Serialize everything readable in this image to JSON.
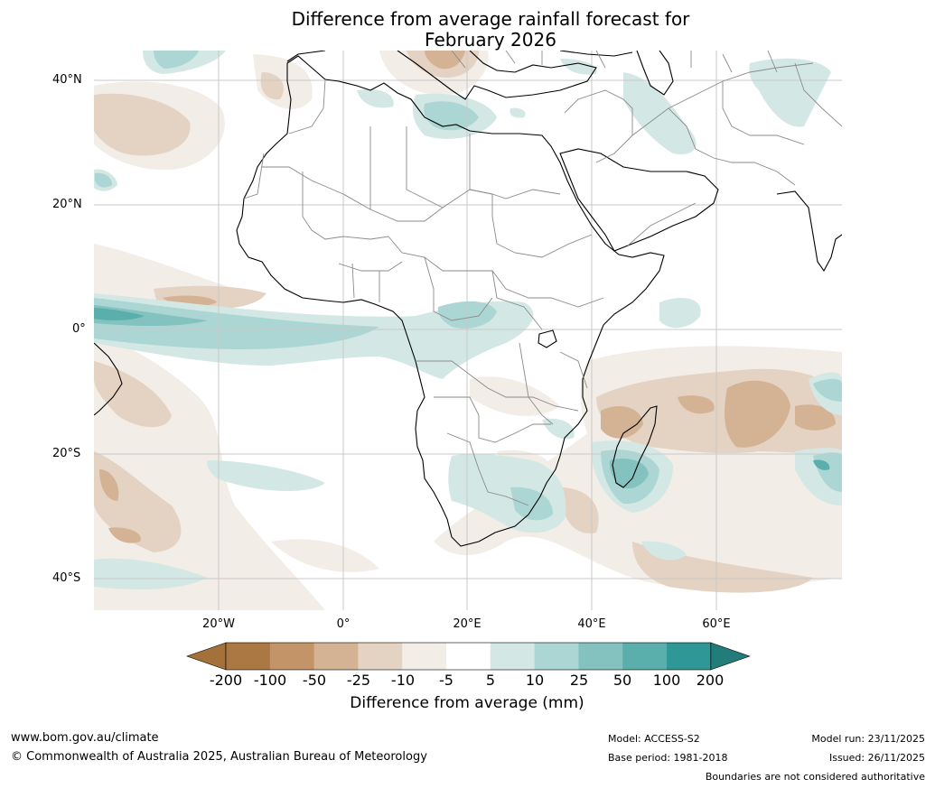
{
  "title_line1": "Difference from average rainfall forecast for",
  "title_line2": "February 2026",
  "lat_labels": [
    "40°N",
    "20°N",
    "0°",
    "20°S",
    "40°S"
  ],
  "lon_labels": [
    "20°W",
    "0°",
    "20°E",
    "40°E",
    "60°E"
  ],
  "colorbar": {
    "ticks": [
      "-200",
      "-100",
      "-50",
      "-25",
      "-10",
      "-5",
      "5",
      "10",
      "25",
      "50",
      "100",
      "200"
    ],
    "colors": [
      "#a5713a",
      "#ab7743",
      "#c39467",
      "#d4b395",
      "#e4d2c2",
      "#f2ede7",
      "#ffffff",
      "#d3e8e5",
      "#acd6d3",
      "#84c2c0",
      "#5aaeac",
      "#2f9896",
      "#217c7a"
    ],
    "label": "Difference from average (mm)"
  },
  "footer": {
    "website": "www.bom.gov.au/climate",
    "copyright": "© Commonwealth of Australia 2025, Australian Bureau of Meteorology",
    "model": "Model: ACCESS-S2",
    "base_period": "Base period: 1981-2018",
    "model_run": "Model run: 23/11/2025",
    "issued": "Issued: 26/11/2025",
    "disclaimer": "Boundaries are not considered authoritative"
  }
}
